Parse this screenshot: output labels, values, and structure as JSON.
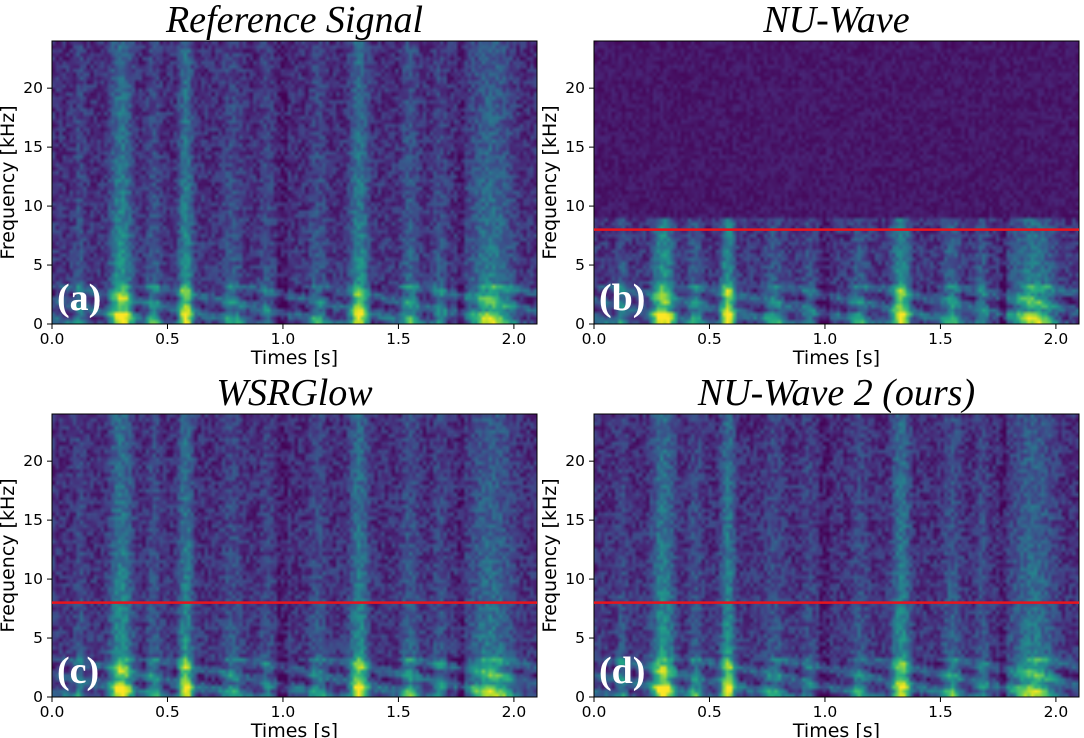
{
  "chart_data": [
    {
      "type": "heatmap",
      "title": "Reference Signal",
      "xlabel": "Times [s]",
      "ylabel": "Frequency [kHz]",
      "xlim": [
        0,
        2.1
      ],
      "ylim": [
        0,
        24
      ],
      "xticks": [
        0.0,
        0.5,
        1.0,
        1.5,
        2.0
      ],
      "xtick_labels": [
        "0.0",
        "0.5",
        "1.0",
        "1.5",
        "2.0"
      ],
      "yticks": [
        0,
        5,
        10,
        15,
        20
      ],
      "ytick_labels": [
        "0",
        "5",
        "10",
        "15",
        "20"
      ],
      "panel_label": "(a)",
      "cutoff_line_khz": null,
      "content_max_khz": 24,
      "colormap": "viridis",
      "grid": false
    },
    {
      "type": "heatmap",
      "title": "NU-Wave",
      "xlabel": "Times [s]",
      "ylabel": "Frequency [kHz]",
      "xlim": [
        0,
        2.1
      ],
      "ylim": [
        0,
        24
      ],
      "xticks": [
        0.0,
        0.5,
        1.0,
        1.5,
        2.0
      ],
      "xtick_labels": [
        "0.0",
        "0.5",
        "1.0",
        "1.5",
        "2.0"
      ],
      "yticks": [
        0,
        5,
        10,
        15,
        20
      ],
      "ytick_labels": [
        "0",
        "5",
        "10",
        "15",
        "20"
      ],
      "panel_label": "(b)",
      "cutoff_line_khz": 8,
      "content_max_khz": 9,
      "colormap": "viridis",
      "grid": false
    },
    {
      "type": "heatmap",
      "title": "WSRGlow",
      "xlabel": "Times [s]",
      "ylabel": "Frequency [kHz]",
      "xlim": [
        0,
        2.1
      ],
      "ylim": [
        0,
        24
      ],
      "xticks": [
        0.0,
        0.5,
        1.0,
        1.5,
        2.0
      ],
      "xtick_labels": [
        "0.0",
        "0.5",
        "1.0",
        "1.5",
        "2.0"
      ],
      "yticks": [
        0,
        5,
        10,
        15,
        20
      ],
      "ytick_labels": [
        "0",
        "5",
        "10",
        "15",
        "20"
      ],
      "panel_label": "(c)",
      "cutoff_line_khz": 8,
      "content_max_khz": 24,
      "colormap": "viridis",
      "grid": false
    },
    {
      "type": "heatmap",
      "title": "NU-Wave 2 (ours)",
      "xlabel": "Times [s]",
      "ylabel": "Frequency [kHz]",
      "xlim": [
        0,
        2.1
      ],
      "ylim": [
        0,
        24
      ],
      "xticks": [
        0.0,
        0.5,
        1.0,
        1.5,
        2.0
      ],
      "xtick_labels": [
        "0.0",
        "0.5",
        "1.0",
        "1.5",
        "2.0"
      ],
      "yticks": [
        0,
        5,
        10,
        15,
        20
      ],
      "ytick_labels": [
        "0",
        "5",
        "10",
        "15",
        "20"
      ],
      "panel_label": "(d)",
      "cutoff_line_khz": 8,
      "content_max_khz": 24,
      "colormap": "viridis",
      "grid": false
    }
  ],
  "colors": {
    "background": "#440154",
    "cutoff_line": "#e8141c",
    "panel_label": "#ffffff"
  }
}
